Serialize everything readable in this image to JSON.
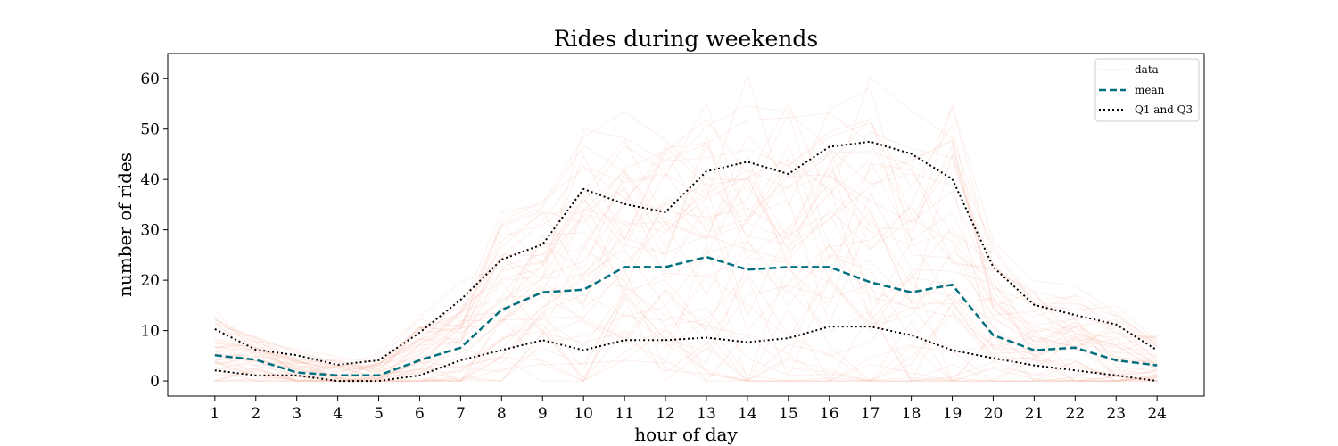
{
  "chart_data": {
    "type": "line",
    "title": "Rides during weekends",
    "xlabel": "hour of day",
    "ylabel": "number of rides",
    "x": [
      1,
      2,
      3,
      4,
      5,
      6,
      7,
      8,
      9,
      10,
      11,
      12,
      13,
      14,
      15,
      16,
      17,
      18,
      19,
      20,
      21,
      22,
      23,
      24
    ],
    "xlim": [
      -0.15,
      25.15
    ],
    "ylim": [
      -3,
      65
    ],
    "yticks": [
      0,
      10,
      20,
      30,
      40,
      50,
      60
    ],
    "grid": false,
    "legend_position": "top-right",
    "legend": [
      "data",
      "mean",
      "Q1 and Q3"
    ],
    "colors": {
      "data": "#f4b6a3",
      "mean": "#00707f",
      "quartile": "#000000"
    },
    "series": [
      {
        "name": "mean",
        "style": "dashed",
        "values": [
          5.1,
          4.2,
          1.7,
          1.1,
          1.1,
          4.1,
          6.6,
          14.1,
          17.6,
          18.1,
          22.6,
          22.6,
          24.6,
          22.1,
          22.6,
          22.6,
          19.6,
          17.6,
          19.1,
          9.1,
          6.1,
          6.6,
          4.1,
          3.1
        ]
      },
      {
        "name": "Q1 and Q3",
        "role": "Q3",
        "style": "dotted",
        "values": [
          10.3,
          6.2,
          5.1,
          3.2,
          4.1,
          9.6,
          16.1,
          24.1,
          27.1,
          38.1,
          35.1,
          33.5,
          41.6,
          43.5,
          41.1,
          46.5,
          47.5,
          45.1,
          40.1,
          22.6,
          15.1,
          13.1,
          11.2,
          6.1
        ]
      },
      {
        "name": "Q1 and Q3",
        "role": "Q1",
        "style": "dotted",
        "values": [
          2.1,
          1.1,
          1.1,
          0.0,
          0.0,
          1.1,
          4.1,
          6.1,
          8.1,
          6.1,
          8.1,
          8.1,
          8.6,
          7.7,
          8.5,
          10.8,
          10.8,
          9.1,
          6.1,
          4.5,
          3.1,
          2.1,
          1.1,
          0.0
        ]
      }
    ]
  }
}
